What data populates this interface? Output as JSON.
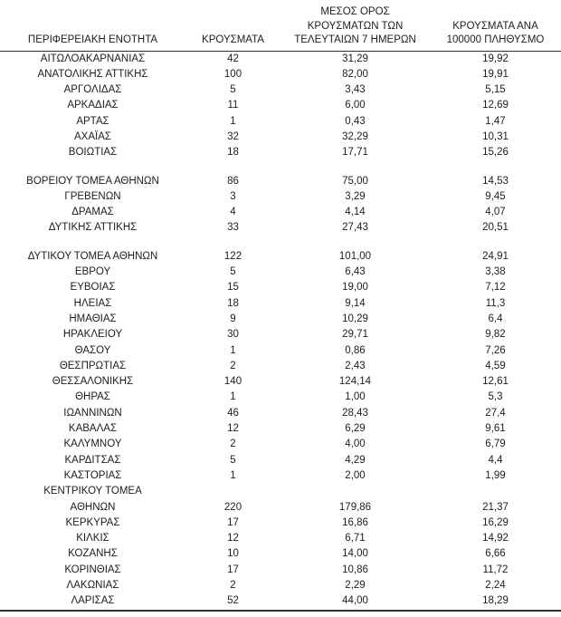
{
  "page": {
    "background": "#ffffff",
    "text_color": "#1d1d1d",
    "rule_color": "#2e2e2e"
  },
  "table": {
    "headers": [
      {
        "lines": [
          "ΠΕΡΙΦΕΡΕΙΑΚΗ ΕΝΟΤΗΤΑ"
        ]
      },
      {
        "lines": [
          "ΚΡΟΥΣΜΑΤΑ"
        ]
      },
      {
        "lines": [
          "ΜΕΣΟΣ ΟΡΟΣ",
          "ΚΡΟΥΣΜΑΤΩΝ ΤΩΝ",
          "ΤΕΛΕΥΤΑΙΩΝ 7 ΗΜΕΡΩΝ"
        ]
      },
      {
        "lines": [
          "ΚΡΟΥΣΜΑΤΑ ΑΝΑ",
          "100000 ΠΛΗΘΥΣΜΟ"
        ]
      }
    ],
    "rows": [
      {
        "name": "ΑΙΤΩΛΟΑΚΑΡΝΑΝΙΑΣ",
        "cases": "42",
        "avg7": "31,29",
        "per100k": "19,92"
      },
      {
        "name": "ΑΝΑΤΟΛΙΚΗΣ ΑΤΤΙΚΗΣ",
        "cases": "100",
        "avg7": "82,00",
        "per100k": "19,91"
      },
      {
        "name": "ΑΡΓΟΛΙΔΑΣ",
        "cases": "5",
        "avg7": "3,43",
        "per100k": "5,15"
      },
      {
        "name": "ΑΡΚΑΔΙΑΣ",
        "cases": "11",
        "avg7": "6,00",
        "per100k": "12,69"
      },
      {
        "name": "ΑΡΤΑΣ",
        "cases": "1",
        "avg7": "0,43",
        "per100k": "1,47"
      },
      {
        "name": "ΑΧΑΪΑΣ",
        "cases": "32",
        "avg7": "32,29",
        "per100k": "10,31"
      },
      {
        "name": "ΒΟΙΩΤΙΑΣ",
        "cases": "18",
        "avg7": "17,71",
        "per100k": "15,26"
      },
      {
        "name": "ΒΟΡΕΙΟΥ ΤΟΜΕΑ ΑΘΗΝΩΝ",
        "cases": "86",
        "avg7": "75,00",
        "per100k": "14,53",
        "gap_before": true
      },
      {
        "name": "ΓΡΕΒΕΝΩΝ",
        "cases": "3",
        "avg7": "3,29",
        "per100k": "9,45"
      },
      {
        "name": "ΔΡΑΜΑΣ",
        "cases": "4",
        "avg7": "4,14",
        "per100k": "4,07"
      },
      {
        "name": "ΔΥΤΙΚΗΣ ΑΤΤΙΚΗΣ",
        "cases": "33",
        "avg7": "27,43",
        "per100k": "20,51"
      },
      {
        "name": "ΔΥΤΙΚΟΥ ΤΟΜΕΑ ΑΘΗΝΩΝ",
        "cases": "122",
        "avg7": "101,00",
        "per100k": "24,91",
        "gap_before": true
      },
      {
        "name": "ΕΒΡΟΥ",
        "cases": "5",
        "avg7": "6,43",
        "per100k": "3,38"
      },
      {
        "name": "ΕΥΒΟΙΑΣ",
        "cases": "15",
        "avg7": "19,00",
        "per100k": "7,12"
      },
      {
        "name": "ΗΛΕΙΑΣ",
        "cases": "18",
        "avg7": "9,14",
        "per100k": "11,3"
      },
      {
        "name": "ΗΜΑΘΙΑΣ",
        "cases": "9",
        "avg7": "10,29",
        "per100k": "6,4"
      },
      {
        "name": "ΗΡΑΚΛΕΙΟΥ",
        "cases": "30",
        "avg7": "29,71",
        "per100k": "9,82"
      },
      {
        "name": "ΘΑΣΟΥ",
        "cases": "1",
        "avg7": "0,86",
        "per100k": "7,26"
      },
      {
        "name": "ΘΕΣΠΡΩΤΙΑΣ",
        "cases": "2",
        "avg7": "2,43",
        "per100k": "4,59"
      },
      {
        "name": "ΘΕΣΣΑΛΟΝΙΚΗΣ",
        "cases": "140",
        "avg7": "124,14",
        "per100k": "12,61"
      },
      {
        "name": "ΘΗΡΑΣ",
        "cases": "1",
        "avg7": "1,00",
        "per100k": "5,3"
      },
      {
        "name": "ΙΩΑΝΝΙΝΩΝ",
        "cases": "46",
        "avg7": "28,43",
        "per100k": "27,4"
      },
      {
        "name": "ΚΑΒΑΛΑΣ",
        "cases": "12",
        "avg7": "6,29",
        "per100k": "9,61"
      },
      {
        "name": "ΚΑΛΥΜΝΟΥ",
        "cases": "2",
        "avg7": "4,00",
        "per100k": "6,79"
      },
      {
        "name": "ΚΑΡΔΙΤΣΑΣ",
        "cases": "5",
        "avg7": "4,29",
        "per100k": "4,4"
      },
      {
        "name": "ΚΑΣΤΟΡΙΑΣ",
        "cases": "1",
        "avg7": "2,00",
        "per100k": "1,99"
      },
      {
        "name": "ΚΕΝΤΡΙΚΟΥ ΤΟΜΕΑ",
        "name_line2": "ΑΘΗΝΩΝ",
        "cases": "220",
        "avg7": "179,86",
        "per100k": "21,37"
      },
      {
        "name": "ΚΕΡΚΥΡΑΣ",
        "cases": "17",
        "avg7": "16,86",
        "per100k": "16,29"
      },
      {
        "name": "ΚΙΛΚΙΣ",
        "cases": "12",
        "avg7": "6,71",
        "per100k": "14,92"
      },
      {
        "name": "ΚΟΖΑΝΗΣ",
        "cases": "10",
        "avg7": "14,00",
        "per100k": "6,66"
      },
      {
        "name": "ΚΟΡΙΝΘΙΑΣ",
        "cases": "17",
        "avg7": "10,86",
        "per100k": "11,72"
      },
      {
        "name": "ΛΑΚΩΝΙΑΣ",
        "cases": "2",
        "avg7": "2,29",
        "per100k": "2,24"
      },
      {
        "name": "ΛΑΡΙΣΑΣ",
        "cases": "52",
        "avg7": "44,00",
        "per100k": "18,29"
      }
    ]
  }
}
